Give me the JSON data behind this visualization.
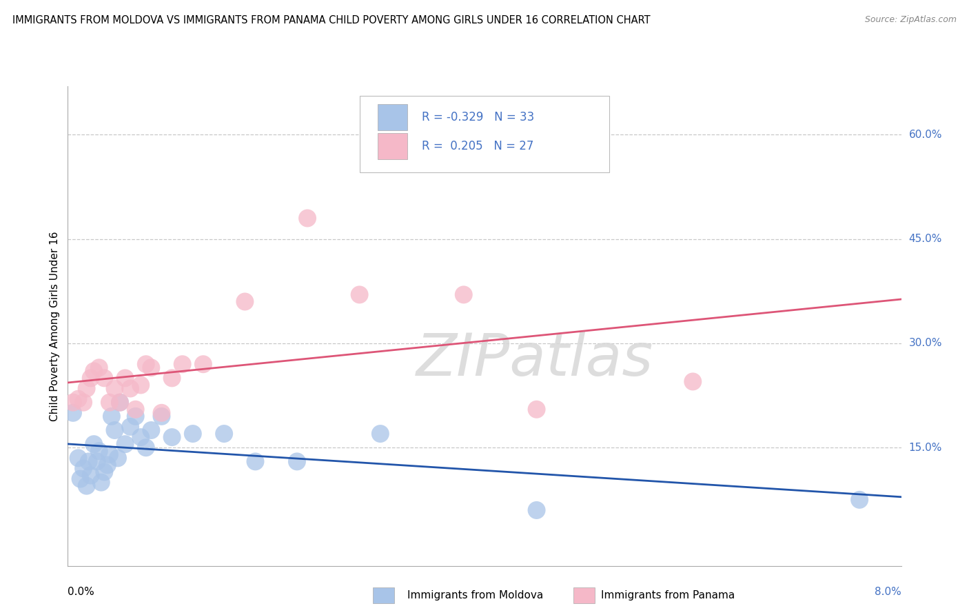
{
  "title": "IMMIGRANTS FROM MOLDOVA VS IMMIGRANTS FROM PANAMA CHILD POVERTY AMONG GIRLS UNDER 16 CORRELATION CHART",
  "source": "Source: ZipAtlas.com",
  "ylabel": "Child Poverty Among Girls Under 16",
  "y_tick_labels": [
    "15.0%",
    "30.0%",
    "45.0%",
    "60.0%"
  ],
  "y_tick_values": [
    0.15,
    0.3,
    0.45,
    0.6
  ],
  "x_lim": [
    0.0,
    0.08
  ],
  "y_lim": [
    -0.02,
    0.67
  ],
  "moldova_R": -0.329,
  "moldova_N": 33,
  "panama_R": 0.205,
  "panama_N": 27,
  "moldova_color": "#a8c4e8",
  "panama_color": "#f5b8c8",
  "moldova_line_color": "#2255aa",
  "panama_line_color": "#dd5577",
  "legend_text_color": "#4472c4",
  "watermark_text": "ZIPatlas",
  "moldova_points": [
    [
      0.0005,
      0.2
    ],
    [
      0.001,
      0.135
    ],
    [
      0.0012,
      0.105
    ],
    [
      0.0015,
      0.12
    ],
    [
      0.0018,
      0.095
    ],
    [
      0.002,
      0.13
    ],
    [
      0.0022,
      0.11
    ],
    [
      0.0025,
      0.155
    ],
    [
      0.0028,
      0.13
    ],
    [
      0.003,
      0.145
    ],
    [
      0.0032,
      0.1
    ],
    [
      0.0035,
      0.115
    ],
    [
      0.0038,
      0.125
    ],
    [
      0.004,
      0.14
    ],
    [
      0.0042,
      0.195
    ],
    [
      0.0045,
      0.175
    ],
    [
      0.0048,
      0.135
    ],
    [
      0.005,
      0.215
    ],
    [
      0.0055,
      0.155
    ],
    [
      0.006,
      0.18
    ],
    [
      0.0065,
      0.195
    ],
    [
      0.007,
      0.165
    ],
    [
      0.0075,
      0.15
    ],
    [
      0.008,
      0.175
    ],
    [
      0.009,
      0.195
    ],
    [
      0.01,
      0.165
    ],
    [
      0.012,
      0.17
    ],
    [
      0.015,
      0.17
    ],
    [
      0.018,
      0.13
    ],
    [
      0.022,
      0.13
    ],
    [
      0.03,
      0.17
    ],
    [
      0.045,
      0.06
    ],
    [
      0.076,
      0.075
    ]
  ],
  "panama_points": [
    [
      0.0005,
      0.215
    ],
    [
      0.001,
      0.22
    ],
    [
      0.0015,
      0.215
    ],
    [
      0.0018,
      0.235
    ],
    [
      0.0022,
      0.25
    ],
    [
      0.0025,
      0.26
    ],
    [
      0.003,
      0.265
    ],
    [
      0.0035,
      0.25
    ],
    [
      0.004,
      0.215
    ],
    [
      0.0045,
      0.235
    ],
    [
      0.005,
      0.215
    ],
    [
      0.0055,
      0.25
    ],
    [
      0.006,
      0.235
    ],
    [
      0.0065,
      0.205
    ],
    [
      0.007,
      0.24
    ],
    [
      0.0075,
      0.27
    ],
    [
      0.008,
      0.265
    ],
    [
      0.009,
      0.2
    ],
    [
      0.01,
      0.25
    ],
    [
      0.011,
      0.27
    ],
    [
      0.013,
      0.27
    ],
    [
      0.017,
      0.36
    ],
    [
      0.023,
      0.48
    ],
    [
      0.028,
      0.37
    ],
    [
      0.038,
      0.37
    ],
    [
      0.045,
      0.205
    ],
    [
      0.06,
      0.245
    ]
  ]
}
